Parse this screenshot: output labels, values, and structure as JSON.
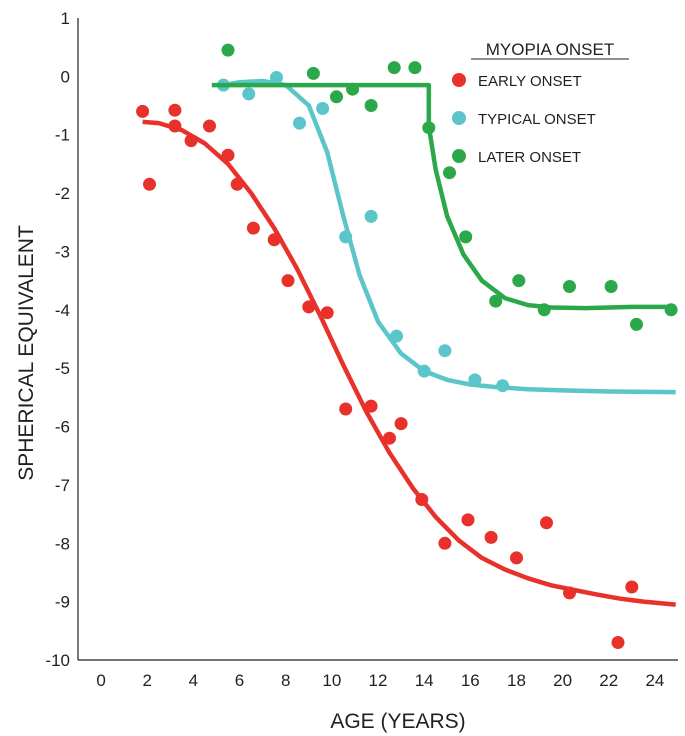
{
  "chart_data": {
    "type": "scatter",
    "xlabel": "AGE (YEARS)",
    "ylabel": "SPHERICAL EQUIVALENT",
    "xlim": [
      -1,
      25
    ],
    "ylim": [
      -10,
      1
    ],
    "xticks": [
      0,
      2,
      4,
      6,
      8,
      10,
      12,
      14,
      16,
      18,
      20,
      22,
      24
    ],
    "yticks": [
      1,
      0,
      -1,
      -2,
      -3,
      -4,
      -5,
      -6,
      -7,
      -8,
      -9,
      -10
    ],
    "grid": false,
    "legend_title": "MYOPIA ONSET",
    "legend_position": "top-right",
    "series": [
      {
        "name": "EARLY ONSET",
        "color": "#e8312a",
        "points": [
          [
            1.8,
            -0.6
          ],
          [
            2.1,
            -1.85
          ],
          [
            3.2,
            -0.58
          ],
          [
            3.2,
            -0.85
          ],
          [
            3.9,
            -1.1
          ],
          [
            4.7,
            -0.85
          ],
          [
            5.5,
            -1.35
          ],
          [
            5.9,
            -1.85
          ],
          [
            6.6,
            -2.6
          ],
          [
            7.5,
            -2.8
          ],
          [
            8.1,
            -3.5
          ],
          [
            9.0,
            -3.95
          ],
          [
            9.8,
            -4.05
          ],
          [
            10.6,
            -5.7
          ],
          [
            11.7,
            -5.65
          ],
          [
            12.5,
            -6.2
          ],
          [
            13.0,
            -5.95
          ],
          [
            13.9,
            -7.25
          ],
          [
            14.9,
            -8.0
          ],
          [
            15.9,
            -7.6
          ],
          [
            16.9,
            -7.9
          ],
          [
            18.0,
            -8.25
          ],
          [
            19.3,
            -7.65
          ],
          [
            20.3,
            -8.85
          ],
          [
            22.4,
            -9.7
          ],
          [
            23.0,
            -8.75
          ]
        ],
        "fit": [
          [
            1.8,
            -0.78
          ],
          [
            2.5,
            -0.8
          ],
          [
            3.5,
            -0.92
          ],
          [
            4.5,
            -1.15
          ],
          [
            5.5,
            -1.5
          ],
          [
            6.5,
            -2.0
          ],
          [
            7.5,
            -2.6
          ],
          [
            8.5,
            -3.3
          ],
          [
            9.5,
            -4.1
          ],
          [
            10.5,
            -4.95
          ],
          [
            11.5,
            -5.75
          ],
          [
            12.5,
            -6.45
          ],
          [
            13.5,
            -7.05
          ],
          [
            14.5,
            -7.55
          ],
          [
            15.5,
            -7.95
          ],
          [
            16.5,
            -8.25
          ],
          [
            17.5,
            -8.45
          ],
          [
            18.5,
            -8.6
          ],
          [
            19.5,
            -8.72
          ],
          [
            20.5,
            -8.8
          ],
          [
            21.5,
            -8.88
          ],
          [
            22.5,
            -8.95
          ],
          [
            23.5,
            -9.0
          ],
          [
            24.9,
            -9.05
          ]
        ]
      },
      {
        "name": "TYPICAL ONSET",
        "color": "#5bc5c9",
        "points": [
          [
            5.3,
            -0.15
          ],
          [
            6.4,
            -0.3
          ],
          [
            7.6,
            -0.02
          ],
          [
            8.6,
            -0.8
          ],
          [
            9.6,
            -0.55
          ],
          [
            10.6,
            -2.75
          ],
          [
            11.7,
            -2.4
          ],
          [
            12.8,
            -4.45
          ],
          [
            14.0,
            -5.05
          ],
          [
            14.9,
            -4.7
          ],
          [
            16.2,
            -5.2
          ],
          [
            17.4,
            -5.3
          ]
        ],
        "fit": [
          [
            5.3,
            -0.15
          ],
          [
            6.0,
            -0.1
          ],
          [
            7.0,
            -0.08
          ],
          [
            8.0,
            -0.15
          ],
          [
            9.0,
            -0.5
          ],
          [
            9.8,
            -1.3
          ],
          [
            10.5,
            -2.4
          ],
          [
            11.2,
            -3.4
          ],
          [
            12.0,
            -4.2
          ],
          [
            13.0,
            -4.75
          ],
          [
            14.0,
            -5.05
          ],
          [
            15.0,
            -5.2
          ],
          [
            16.0,
            -5.28
          ],
          [
            17.0,
            -5.32
          ],
          [
            18.5,
            -5.36
          ],
          [
            20.0,
            -5.38
          ],
          [
            22.0,
            -5.4
          ],
          [
            24.9,
            -5.41
          ]
        ]
      },
      {
        "name": "LATER ONSET",
        "color": "#2aa84a",
        "points": [
          [
            5.5,
            0.45
          ],
          [
            9.2,
            0.05
          ],
          [
            10.2,
            -0.35
          ],
          [
            10.9,
            -0.22
          ],
          [
            11.7,
            -0.5
          ],
          [
            12.7,
            0.15
          ],
          [
            13.6,
            0.15
          ],
          [
            14.2,
            -0.88
          ],
          [
            15.1,
            -1.65
          ],
          [
            15.8,
            -2.75
          ],
          [
            17.1,
            -3.85
          ],
          [
            18.1,
            -3.5
          ],
          [
            19.2,
            -4.0
          ],
          [
            20.3,
            -3.6
          ],
          [
            22.1,
            -3.6
          ],
          [
            23.2,
            -4.25
          ],
          [
            24.7,
            -4.0
          ]
        ],
        "fit": [
          [
            4.8,
            -0.15
          ],
          [
            14.2,
            -0.15
          ],
          [
            14.2,
            -0.85
          ],
          [
            14.5,
            -1.6
          ],
          [
            15.0,
            -2.4
          ],
          [
            15.7,
            -3.05
          ],
          [
            16.5,
            -3.5
          ],
          [
            17.5,
            -3.8
          ],
          [
            18.5,
            -3.92
          ],
          [
            19.5,
            -3.96
          ],
          [
            21.0,
            -3.97
          ],
          [
            23.0,
            -3.95
          ],
          [
            24.9,
            -3.95
          ]
        ]
      }
    ]
  }
}
